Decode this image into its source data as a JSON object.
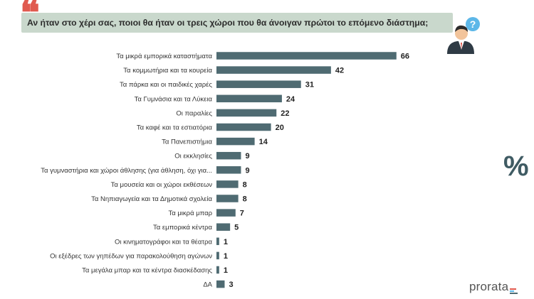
{
  "header": {
    "quote_symbol": "❝",
    "question": "Αν ήταν στο χέρι σας, ποιοι θα ήταν οι τρεις χώροι που θα άνοιγαν πρώτοι το επόμενο διάστημα;"
  },
  "unit_symbol": "%",
  "logo": {
    "text": "prorata"
  },
  "colors": {
    "bar": "#4f6b72",
    "question_bg": "#c9d8cc",
    "quote": "#e05a4f"
  },
  "chart_data": {
    "type": "bar",
    "orientation": "horizontal",
    "categories": [
      "Τα μικρά εμπορικά καταστήματα",
      "Τα κομμωτήρια και τα κουρεία",
      "Τα πάρκα και οι παιδικές χαρές",
      "Τα Γυμνάσια και τα Λύκεια",
      "Οι παραλίες",
      "Τα καφέ και τα εστιατόρια",
      "Τα Πανεπιστήμια",
      "Οι εκκλησίες",
      "Τα γυμναστήρια και χώροι άθλησης (για άθληση, όχι για...",
      "Τα μουσεία και οι χώροι εκθέσεων",
      "Τα Νηπιαγωγεία και τα Δημοτικά σχολεία",
      "Τα μικρά μπαρ",
      "Τα εμπορικά κέντρα",
      "Οι κινηματογράφοι και τα θέατρα",
      "Οι εξέδρες των γηπέδων για παρακολούθηση αγώνων",
      "Τα μεγάλα μπαρ και τα κέντρα διασκέδασης",
      "ΔΑ"
    ],
    "values": [
      66,
      42,
      31,
      24,
      22,
      20,
      14,
      9,
      9,
      8,
      8,
      7,
      5,
      1,
      1,
      1,
      3
    ],
    "xlim": [
      0,
      70
    ],
    "grid": false,
    "legend": "none"
  }
}
